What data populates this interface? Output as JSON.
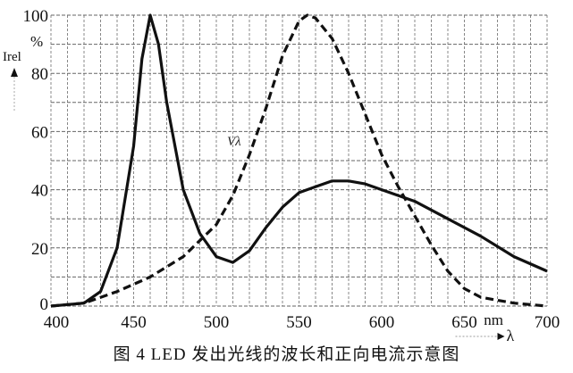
{
  "chart_data": {
    "type": "line",
    "title": "",
    "caption": "图 4   LED 发出光线的波长和正向电流示意图",
    "xlabel": "λ",
    "xunit": "nm",
    "ylabel": "Irel",
    "yunit": "%",
    "xlim": [
      400,
      700
    ],
    "ylim": [
      0,
      100
    ],
    "xticks": [
      400,
      450,
      500,
      550,
      600,
      650,
      700
    ],
    "yticks": [
      0,
      20,
      40,
      60,
      80,
      100
    ],
    "grid": true,
    "series": [
      {
        "style": "solid",
        "x": [
          400,
          420,
          430,
          440,
          450,
          455,
          460,
          465,
          470,
          480,
          490,
          500,
          510,
          520,
          530,
          540,
          550,
          560,
          570,
          580,
          590,
          600,
          620,
          640,
          660,
          680,
          700
        ],
        "y": [
          0,
          1,
          5,
          20,
          55,
          85,
          100,
          90,
          70,
          40,
          25,
          17,
          15,
          19,
          27,
          34,
          39,
          41,
          43,
          43,
          42,
          40,
          36,
          30,
          24,
          17,
          12
        ]
      },
      {
        "name": "Vλ",
        "style": "dashed",
        "x": [
          400,
          420,
          440,
          460,
          480,
          500,
          510,
          520,
          530,
          540,
          550,
          555,
          560,
          570,
          580,
          590,
          600,
          610,
          620,
          630,
          640,
          650,
          660,
          680,
          700
        ],
        "y": [
          0,
          1,
          5,
          10,
          17,
          28,
          38,
          52,
          68,
          86,
          98,
          100,
          99,
          92,
          80,
          66,
          52,
          41,
          31,
          21,
          12,
          6,
          3,
          1,
          0
        ]
      }
    ]
  }
}
